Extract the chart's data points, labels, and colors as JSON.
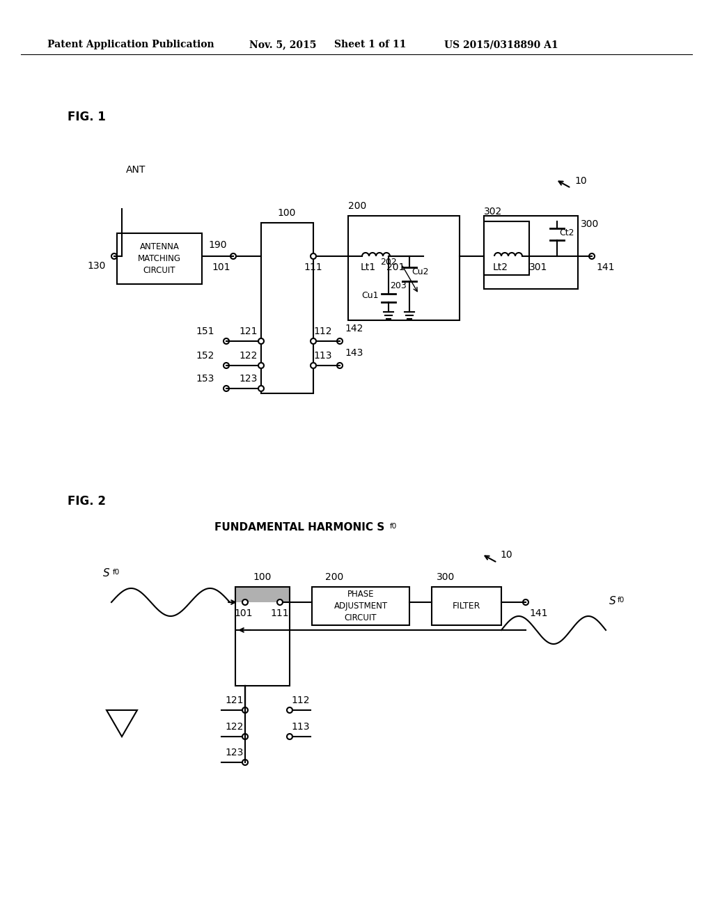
{
  "bg_color": "#ffffff",
  "header_text": "Patent Application Publication",
  "header_date": "Nov. 5, 2015",
  "header_sheet": "Sheet 1 of 11",
  "header_patent": "US 2015/0318890 A1",
  "fig1_label": "FIG. 1",
  "fig2_label": "FIG. 2",
  "fig2_title": "FUNDAMENTAL HARMONIC S",
  "fig2_title_sub": "f0"
}
